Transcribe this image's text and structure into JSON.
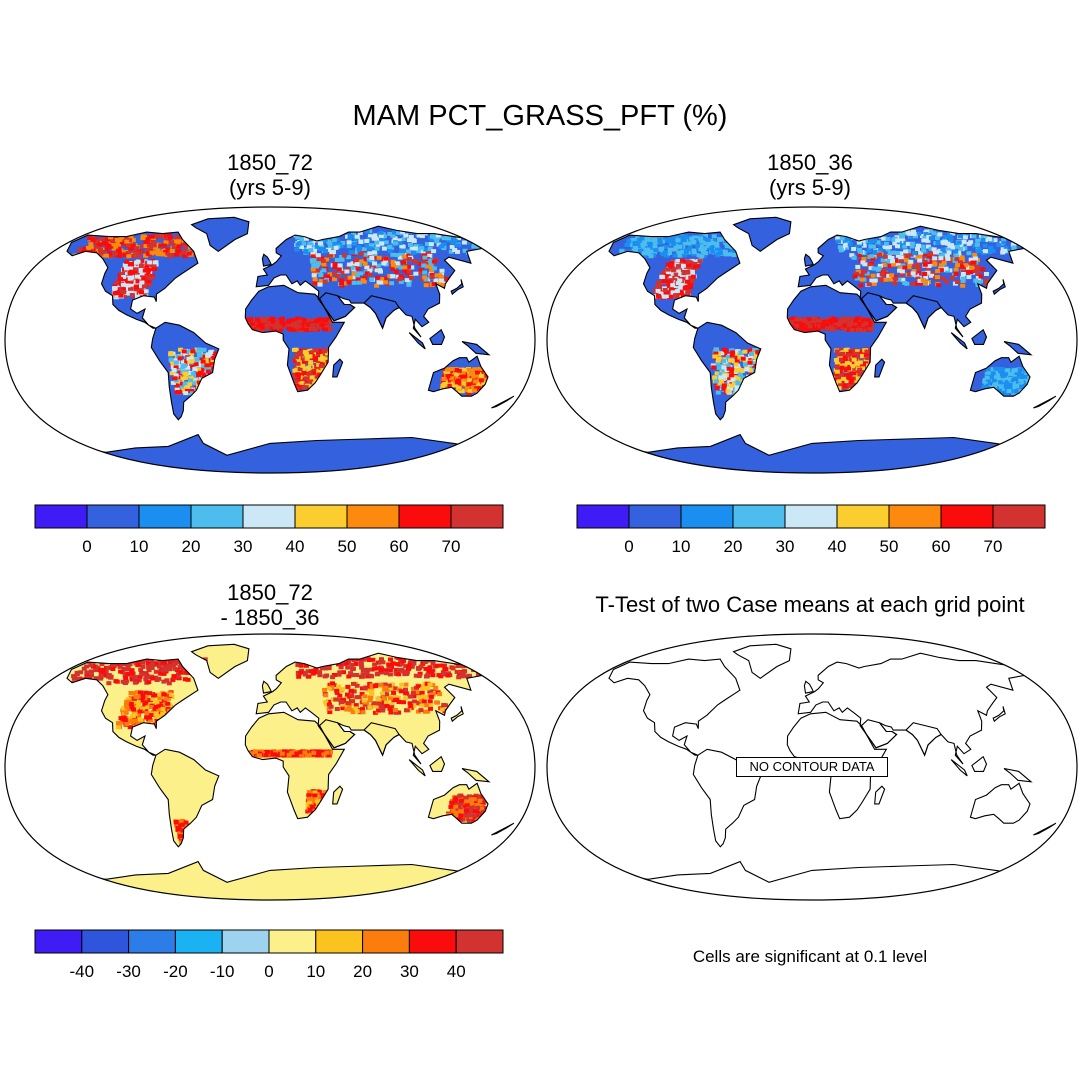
{
  "figure": {
    "title": "MAM PCT_GRASS_PFT (%)"
  },
  "panels": [
    {
      "id": "case1",
      "title_line1": "1850_72",
      "title_line2": "(yrs 5-9)"
    },
    {
      "id": "case2",
      "title_line1": "1850_36",
      "title_line2": "(yrs 5-9)"
    },
    {
      "id": "diff",
      "title_line1": "1850_72",
      "title_line2": "- 1850_36"
    },
    {
      "id": "ttest",
      "title_line1": "T-Test of two Case means at each grid point",
      "message": "NO CONTOUR DATA",
      "footnote": "Cells are significant at 0.1 level"
    }
  ],
  "colorbars": {
    "absolute": {
      "labels": [
        "0",
        "10",
        "20",
        "30",
        "40",
        "50",
        "60",
        "70"
      ],
      "colors": [
        "#3f1cf5",
        "#3461dd",
        "#1b8ff0",
        "#4dbdee",
        "#cce7f6",
        "#fbcd2e",
        "#fb8a0e",
        "#fb0c0c",
        "#d23230"
      ]
    },
    "difference": {
      "labels": [
        "-40",
        "-30",
        "-20",
        "-10",
        "0",
        "10",
        "20",
        "30",
        "40"
      ],
      "colors": [
        "#3f1cf5",
        "#2f55dc",
        "#2c7de8",
        "#1bb2f3",
        "#9dd3ef",
        "#fcf08a",
        "#fbc31f",
        "#fb7d0d",
        "#fb0c0c",
        "#d23230"
      ]
    }
  },
  "colors": {
    "ocean": "#ffffff",
    "land_low": "#3461dd",
    "land_diff": "#fcf08a",
    "coast": "#000000"
  }
}
